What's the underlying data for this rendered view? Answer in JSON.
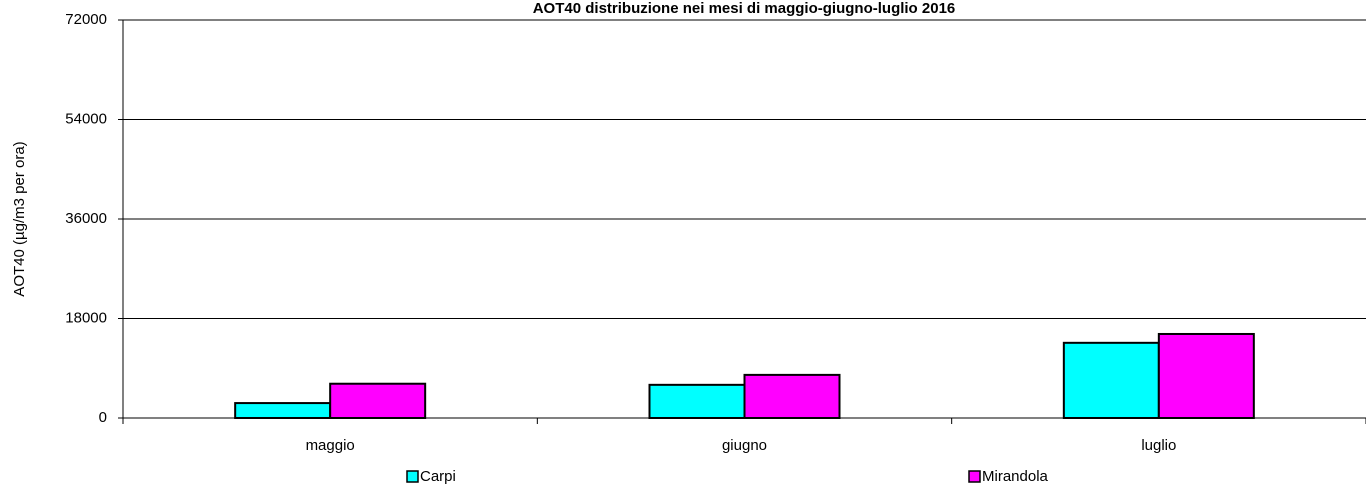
{
  "chart_data": {
    "type": "bar",
    "title": "AOT40 distribuzione nei mesi di maggio-giugno-luglio 2016",
    "y_label": "AOT40 (µg/m3 per ora)",
    "categories": [
      "maggio",
      "giugno",
      "luglio"
    ],
    "series": [
      {
        "name": "Carpi",
        "color": "#00ffff",
        "values": [
          2700,
          6000,
          13600
        ]
      },
      {
        "name": "Mirandola",
        "color": "#ff00ff",
        "values": [
          6200,
          7800,
          15200
        ]
      }
    ],
    "ylim": [
      0,
      72000
    ],
    "yticks": [
      0,
      18000,
      36000,
      54000,
      72000
    ],
    "grid": true
  }
}
